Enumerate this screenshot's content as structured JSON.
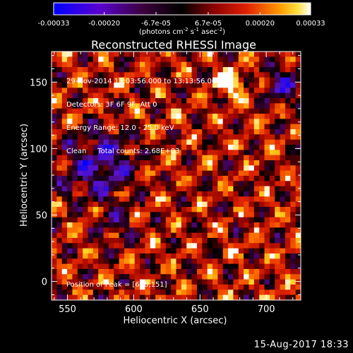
{
  "colorbar": {
    "ticks": [
      "-0.00033",
      "-0.00020",
      "-6.7e-05",
      "6.7e-05",
      "0.00020",
      "0.00033"
    ],
    "unit_prefix": "(photons cm",
    "unit_exp1": "-2",
    "unit_mid": " s",
    "unit_exp2": "-1",
    "unit_mid2": " asec",
    "unit_exp3": "-2",
    "unit_suffix": ")",
    "range": [
      -0.00033,
      0.00033
    ]
  },
  "chart_data": {
    "type": "heatmap",
    "title": "Reconstructed RHESSI Image",
    "xlabel": "Heliocentric X (arcsec)",
    "ylabel": "Heliocentric Y (arcsec)",
    "xlim": [
      538,
      726
    ],
    "ylim": [
      -14,
      173
    ],
    "xticks": [
      550,
      600,
      650,
      700
    ],
    "yticks": [
      0,
      50,
      100,
      150
    ],
    "annotations": [
      "29-Nov-2014 13:03:56.000 to 13:13:56.000",
      "Detectors: 3F 6F 9F, Att 0",
      "Energy Range: 12.0 - 25.0 keV",
      "Clean     Total counts: 2.68E+03"
    ],
    "peak_label": "Position of Peak = [668,151]",
    "peak_position": [
      668,
      151
    ],
    "colormap": [
      "#0000ff",
      "#6a1aa8",
      "#000000",
      "#8a0000",
      "#e02000",
      "#ff7a00",
      "#ffd21a",
      "#ffffff"
    ]
  },
  "footer": {
    "date_stamp": "15-Aug-2017 18:33"
  }
}
